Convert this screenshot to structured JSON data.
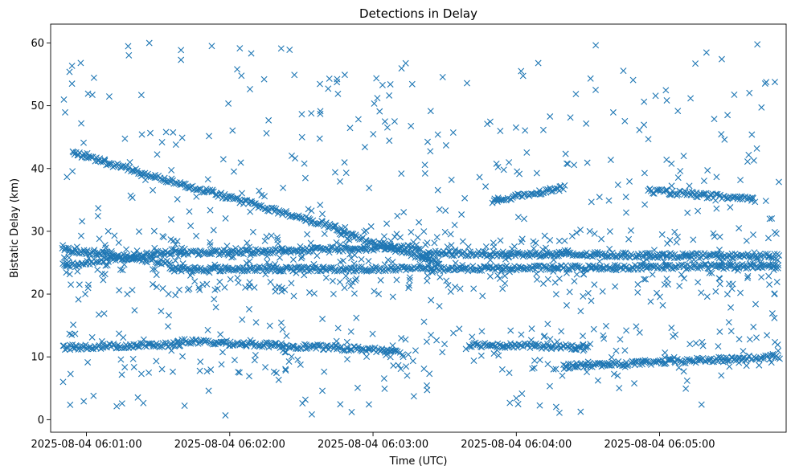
{
  "chart_data": {
    "type": "scatter",
    "title": "Detections in Delay",
    "xlabel": "Time (UTC)",
    "ylabel": "Bistatic Delay (km)",
    "marker": "x",
    "color": "#1f77b4",
    "grid": false,
    "legend": "none",
    "x_unit": "datetime UTC",
    "xlim": [
      "2025-08-04 06:00:45",
      "2025-08-04 06:05:53"
    ],
    "ylim": [
      -2,
      63
    ],
    "xticks": [
      "2025-08-04 06:01:00",
      "2025-08-04 06:02:00",
      "2025-08-04 06:03:00",
      "2025-08-04 06:04:00",
      "2025-08-04 06:05:00"
    ],
    "yticks": [
      0,
      10,
      20,
      30,
      40,
      50,
      60
    ],
    "tracks": [
      {
        "start": [
          "2025-08-04 06:00:54",
          42.5
        ],
        "end": [
          "2025-08-04 06:02:45",
          30.5
        ]
      },
      {
        "start": [
          "2025-08-04 06:02:45",
          30.0
        ],
        "end": [
          "2025-08-04 06:03:28",
          25.0
        ]
      },
      {
        "start": [
          "2025-08-04 06:00:50",
          27.2
        ],
        "end": [
          "2025-08-04 06:01:35",
          25.0
        ]
      },
      {
        "start": [
          "2025-08-04 06:00:50",
          24.5
        ],
        "end": [
          "2025-08-04 06:01:40",
          27.0
        ]
      },
      {
        "start": [
          "2025-08-04 06:01:40",
          26.5
        ],
        "end": [
          "2025-08-04 06:03:20",
          27.5
        ]
      },
      {
        "start": [
          "2025-08-04 06:01:35",
          24.0
        ],
        "end": [
          "2025-08-04 06:03:20",
          24.0
        ]
      },
      {
        "start": [
          "2025-08-04 06:03:20",
          26.5
        ],
        "end": [
          "2025-08-04 06:05:50",
          26.0
        ]
      },
      {
        "start": [
          "2025-08-04 06:03:20",
          24.0
        ],
        "end": [
          "2025-08-04 06:05:50",
          24.5
        ]
      },
      {
        "start": [
          "2025-08-04 06:01:40",
          12.5
        ],
        "end": [
          "2025-08-04 06:03:10",
          11.0
        ]
      },
      {
        "start": [
          "2025-08-04 06:03:40",
          12.0
        ],
        "end": [
          "2025-08-04 06:04:30",
          11.5
        ]
      },
      {
        "start": [
          "2025-08-04 06:04:20",
          8.5
        ],
        "end": [
          "2025-08-04 06:05:50",
          10.0
        ]
      },
      {
        "start": [
          "2025-08-04 06:00:50",
          11.5
        ],
        "end": [
          "2025-08-04 06:01:40",
          12.0
        ]
      },
      {
        "start": [
          "2025-08-04 06:04:55",
          36.5
        ],
        "end": [
          "2025-08-04 06:05:40",
          35.0
        ]
      },
      {
        "start": [
          "2025-08-04 06:03:50",
          34.8
        ],
        "end": [
          "2025-08-04 06:04:20",
          37.0
        ]
      }
    ],
    "scatter_seed": 7,
    "scatter_count": 900
  }
}
